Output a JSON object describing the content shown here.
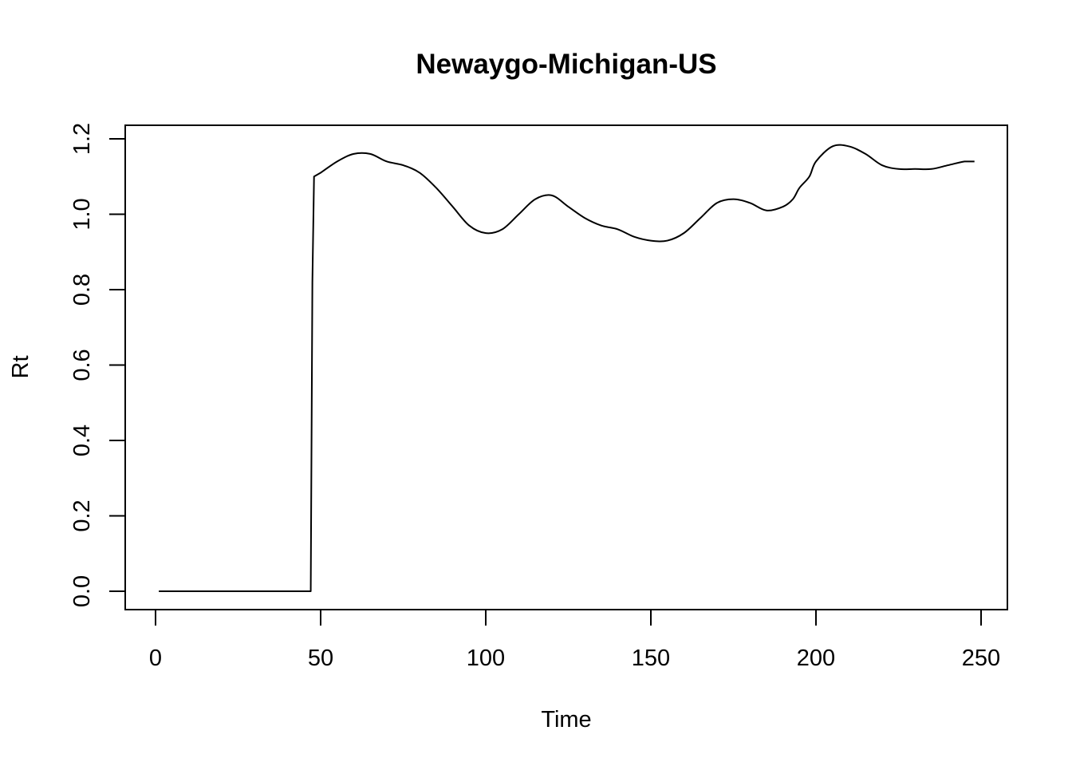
{
  "chart_data": {
    "type": "line",
    "title": "Newaygo-Michigan-US",
    "xlabel": "Time",
    "ylabel": "Rt",
    "xlim": [
      1,
      248
    ],
    "ylim": [
      0,
      1.2
    ],
    "xticks": [
      0,
      50,
      100,
      150,
      200,
      250
    ],
    "yticks": [
      0.0,
      0.2,
      0.4,
      0.6,
      0.8,
      1.0,
      1.2
    ],
    "xtick_labels": [
      "0",
      "50",
      "100",
      "150",
      "200",
      "250"
    ],
    "ytick_labels": [
      "0.0",
      "0.2",
      "0.4",
      "0.6",
      "0.8",
      "1.0",
      "1.2"
    ],
    "grid": false,
    "legend": "none",
    "series": [
      {
        "color": "#000000",
        "x": [
          1,
          10,
          20,
          30,
          40,
          47,
          47.5,
          48,
          50,
          55,
          60,
          65,
          70,
          75,
          80,
          85,
          90,
          95,
          100,
          105,
          110,
          115,
          120,
          125,
          130,
          135,
          140,
          145,
          150,
          155,
          160,
          165,
          170,
          175,
          180,
          185,
          190,
          193,
          195,
          198,
          200,
          205,
          210,
          215,
          220,
          225,
          230,
          235,
          240,
          245,
          248
        ],
        "y": [
          0,
          0,
          0,
          0,
          0,
          0,
          0.82,
          1.1,
          1.11,
          1.14,
          1.16,
          1.16,
          1.14,
          1.13,
          1.11,
          1.07,
          1.02,
          0.97,
          0.95,
          0.96,
          1.0,
          1.04,
          1.05,
          1.02,
          0.99,
          0.97,
          0.96,
          0.94,
          0.93,
          0.93,
          0.95,
          0.99,
          1.03,
          1.04,
          1.03,
          1.01,
          1.02,
          1.04,
          1.07,
          1.1,
          1.14,
          1.18,
          1.18,
          1.16,
          1.13,
          1.12,
          1.12,
          1.12,
          1.13,
          1.14,
          1.14
        ]
      }
    ]
  }
}
